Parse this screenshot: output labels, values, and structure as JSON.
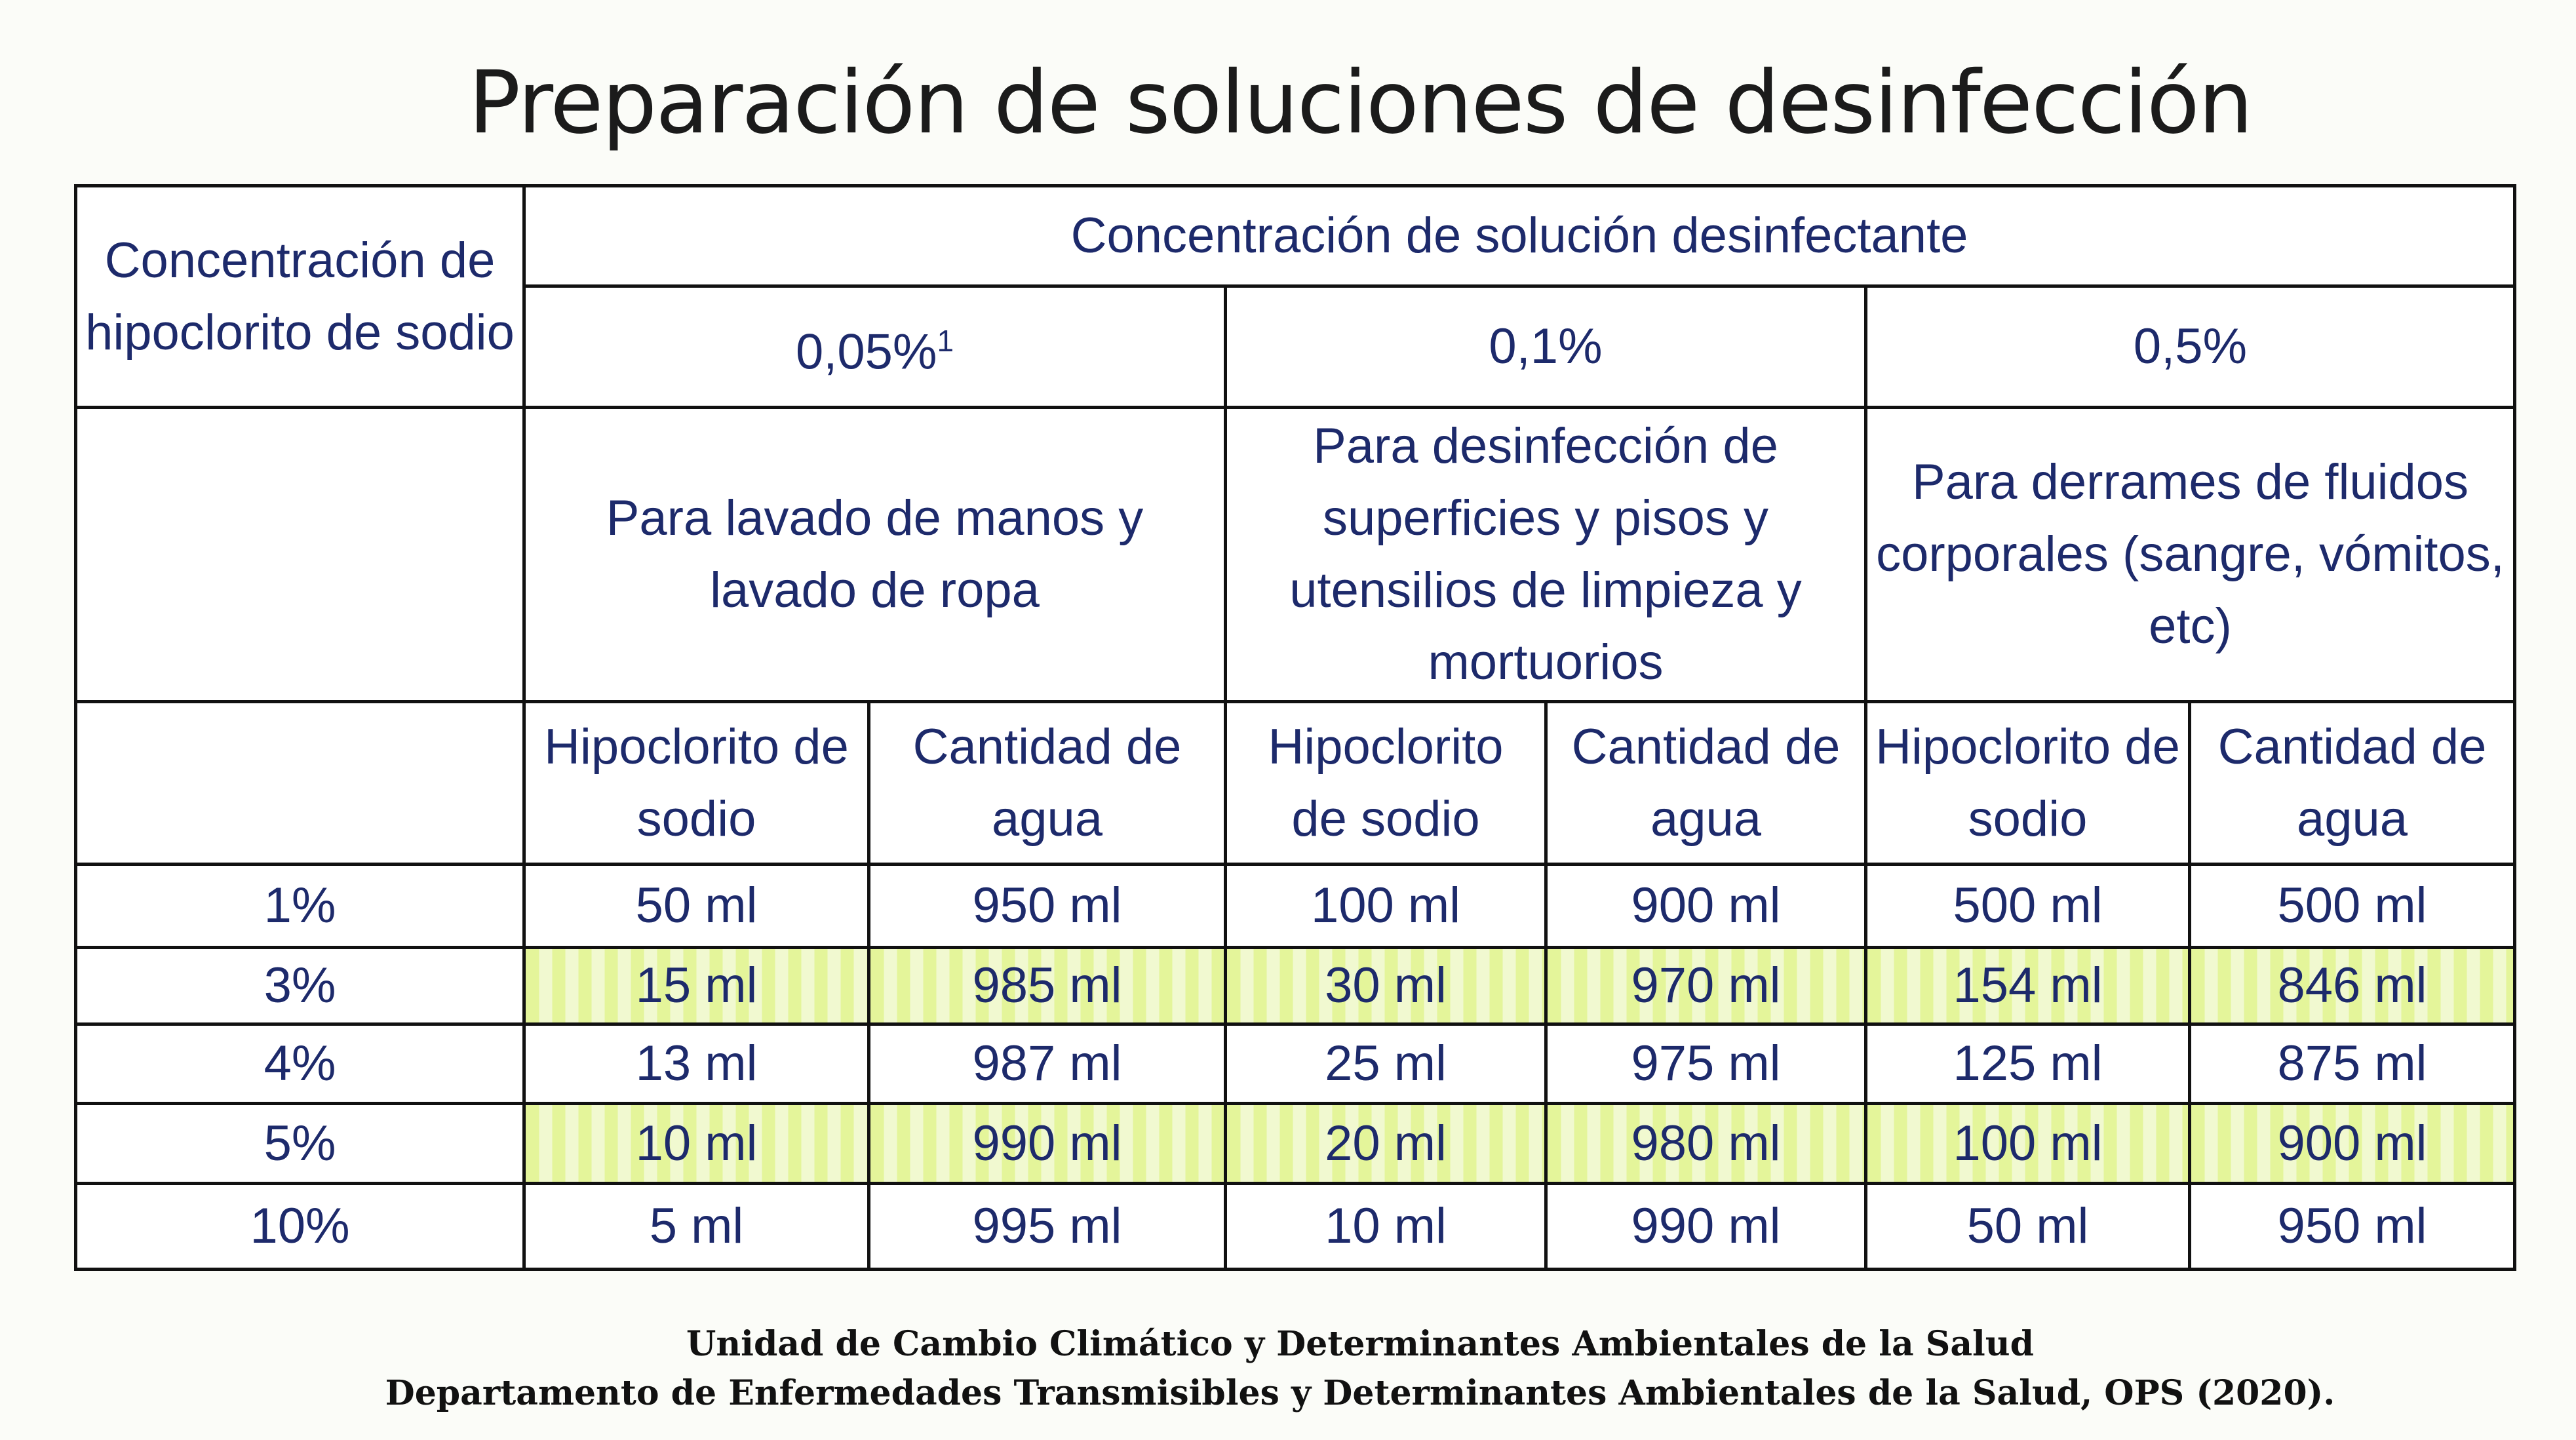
{
  "title": "Preparación de soluciones de desinfección",
  "table": {
    "corner_header": "Concentración de hipoclorito de sodio",
    "group_header": "Concentración de solución desinfectante",
    "concentrations": [
      {
        "label": "0,05%",
        "sup": "1",
        "use": "Para lavado de manos y lavado de ropa"
      },
      {
        "label": "0,1%",
        "sup": "",
        "use": "Para desinfección de superficies y pisos y utensilios de limpieza y mortuorios"
      },
      {
        "label": "0,5%",
        "sup": "",
        "use": "Para derrames de fluidos corporales (sangre, vómitos, etc)"
      }
    ],
    "sub_headers": [
      "Hipoclorito de sodio",
      "Cantidad de agua"
    ],
    "rows": [
      {
        "conc": "1%",
        "highlight": false,
        "values": [
          "50 ml",
          "950 ml",
          "100 ml",
          "900 ml",
          "500 ml",
          "500 ml"
        ]
      },
      {
        "conc": "3%",
        "highlight": true,
        "values": [
          "15 ml",
          "985 ml",
          "30 ml",
          "970 ml",
          "154 ml",
          "846 ml"
        ]
      },
      {
        "conc": "4%",
        "highlight": false,
        "values": [
          "13 ml",
          "987 ml",
          "25 ml",
          "975 ml",
          "125 ml",
          "875 ml"
        ]
      },
      {
        "conc": "5%",
        "highlight": true,
        "values": [
          "10 ml",
          "990 ml",
          "20 ml",
          "980 ml",
          "100 ml",
          "900 ml"
        ]
      },
      {
        "conc": "10%",
        "highlight": false,
        "values": [
          "5 ml",
          "995 ml",
          "10 ml",
          "990 ml",
          "50 ml",
          "950 ml"
        ]
      }
    ]
  },
  "footer": {
    "line1": "Unidad de Cambio Climático y Determinantes Ambientales de la Salud",
    "line2": "Departamento de Enfermedades Transmisibles y Determinantes Ambientales de la Salud, OPS (2020)."
  },
  "colors": {
    "text": "#1d2a6b",
    "highlight": "#e4f59a"
  }
}
